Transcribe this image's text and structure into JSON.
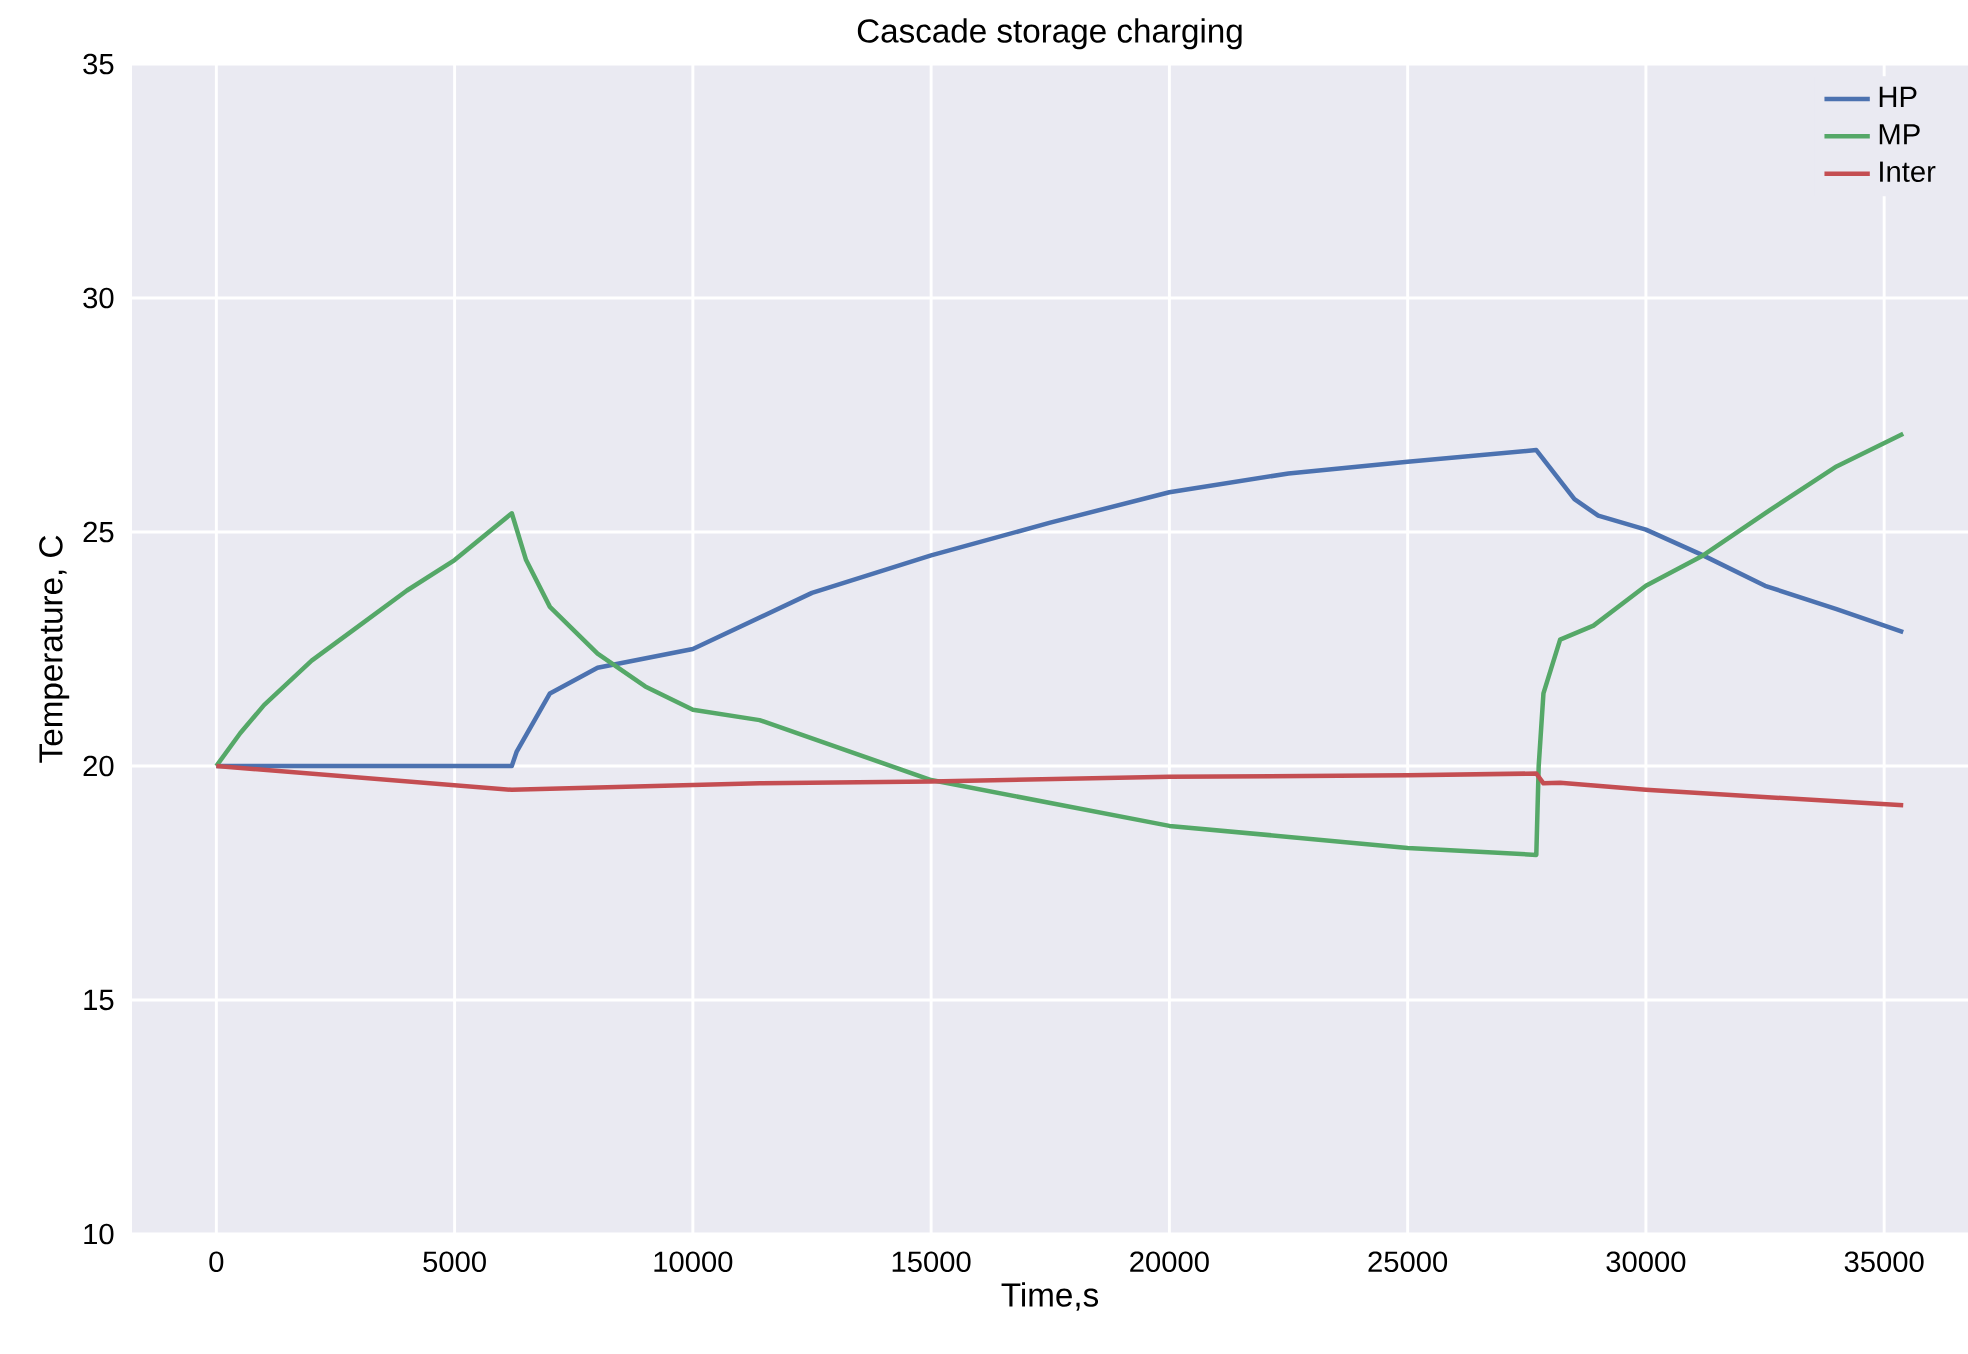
{
  "chart_data": {
    "type": "line",
    "title": "Cascade storage charging",
    "xlabel": "Time,s",
    "ylabel": "Temperature, C",
    "xlim": [
      -1770,
      36760
    ],
    "ylim": [
      10,
      35
    ],
    "xticks": [
      0,
      5000,
      10000,
      15000,
      20000,
      25000,
      30000,
      35000
    ],
    "yticks": [
      10,
      15,
      20,
      25,
      30,
      35
    ],
    "grid": true,
    "legend": "top right",
    "line_style": "solid",
    "series": [
      {
        "name": "HP",
        "color": "#4c72b0",
        "x": [
          0,
          3000,
          6200,
          6300,
          7000,
          8000,
          10000,
          12500,
          15000,
          17500,
          20000,
          22500,
          25000,
          27700,
          28500,
          29000,
          30000,
          31200,
          32500,
          34000,
          35400
        ],
        "values": [
          20,
          20,
          20,
          20.3,
          21.55,
          22.1,
          22.5,
          23.7,
          24.5,
          25.2,
          25.85,
          26.25,
          26.5,
          26.75,
          25.7,
          25.35,
          25.05,
          24.5,
          23.85,
          23.35,
          22.86
        ]
      },
      {
        "name": "MP",
        "color": "#55a868",
        "x": [
          0,
          500,
          1000,
          2000,
          3000,
          4000,
          5000,
          6200,
          6500,
          7000,
          8000,
          9000,
          10000,
          11400,
          15000,
          20000,
          25000,
          27700,
          27750,
          27850,
          28200,
          28900,
          30000,
          31200,
          32500,
          34000,
          35400
        ],
        "values": [
          20,
          20.7,
          21.3,
          22.25,
          23,
          23.75,
          24.4,
          25.4,
          24.4,
          23.4,
          22.4,
          21.7,
          21.2,
          20.98,
          19.7,
          18.72,
          18.25,
          18.1,
          20,
          21.55,
          22.7,
          23,
          23.85,
          24.5,
          25.4,
          26.4,
          27.1
        ]
      },
      {
        "name": "Inter",
        "color": "#c44e52",
        "x": [
          0,
          6200,
          6400,
          11400,
          15000,
          20000,
          25000,
          27700,
          27850,
          28200,
          30000,
          35400
        ],
        "values": [
          20,
          19.49,
          19.5,
          19.63,
          19.67,
          19.77,
          19.8,
          19.84,
          19.63,
          19.64,
          19.49,
          19.16
        ]
      }
    ]
  }
}
